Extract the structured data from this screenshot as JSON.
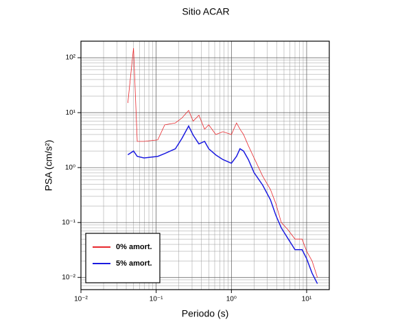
{
  "chart_data": {
    "type": "line",
    "title": "Sitio ACAR",
    "x_label": "Periodo (s)",
    "y_label": "PSA (cm/s²)",
    "log_x": true,
    "log_y": true,
    "grid": true,
    "legend_position": "lower left",
    "xlim": [
      0.01,
      20
    ],
    "ylim": [
      0.006,
      200
    ],
    "xticks": [
      {
        "value": 0.01,
        "label": "10⁻²"
      },
      {
        "value": 0.1,
        "label": "10⁻¹"
      },
      {
        "value": 1,
        "label": "10⁰"
      },
      {
        "value": 10,
        "label": "10¹"
      }
    ],
    "yticks": [
      {
        "value": 0.01,
        "label": "10⁻²"
      },
      {
        "value": 0.1,
        "label": "10⁻¹"
      },
      {
        "value": 1,
        "label": "10⁰"
      },
      {
        "value": 10,
        "label": "10¹"
      },
      {
        "value": 100,
        "label": "10²"
      }
    ],
    "x": [
      0.042,
      0.05,
      0.056,
      0.069,
      0.105,
      0.13,
      0.18,
      0.22,
      0.27,
      0.31,
      0.37,
      0.44,
      0.5,
      0.62,
      0.77,
      1.0,
      1.17,
      1.3,
      1.45,
      1.68,
      2.0,
      2.6,
      3.3,
      3.9,
      4.6,
      5.6,
      7.0,
      8.7,
      10.0,
      11.8,
      13.9
    ],
    "series": [
      {
        "name": "0% amort.",
        "color": "#e8262b",
        "values": [
          15,
          150,
          3,
          3,
          3.2,
          6,
          6.5,
          8,
          11,
          7,
          9,
          5,
          6,
          4,
          4.5,
          4,
          6.5,
          5,
          4,
          2.5,
          1.5,
          0.7,
          0.4,
          0.22,
          0.1,
          0.075,
          0.05,
          0.05,
          0.03,
          0.02,
          0.01
        ]
      },
      {
        "name": "5% amort.",
        "color": "#1a1ae0",
        "values": [
          1.71,
          2.0,
          1.6,
          1.5,
          1.6,
          1.8,
          2.2,
          3.4,
          5.7,
          3.9,
          2.7,
          3.0,
          2.2,
          1.7,
          1.4,
          1.2,
          1.6,
          2.2,
          2.0,
          1.4,
          0.81,
          0.48,
          0.26,
          0.135,
          0.08,
          0.052,
          0.032,
          0.032,
          0.022,
          0.012,
          0.0077
        ]
      }
    ]
  }
}
